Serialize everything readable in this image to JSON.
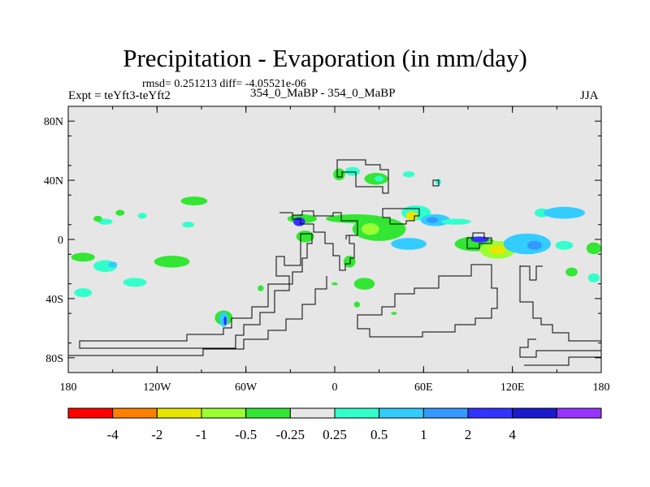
{
  "title": "Precipitation - Evaporation (in mm/day)",
  "stats": "rmsd= 0.251213 diff= -4.05521e-06",
  "expt": "Expt = teYft3-teYft2",
  "center_label": "354_0_MaBP - 354_0_MaBP",
  "season": "JJA",
  "chart_data": {
    "type": "heatmap",
    "projection": "cylindrical-equidistant",
    "xlim": [
      -180,
      180
    ],
    "ylim": [
      -90,
      90
    ],
    "x_ticks": [
      {
        "value": -180,
        "label": "180"
      },
      {
        "value": -120,
        "label": "120W"
      },
      {
        "value": -60,
        "label": "60W"
      },
      {
        "value": 0,
        "label": "0"
      },
      {
        "value": 60,
        "label": "60E"
      },
      {
        "value": 120,
        "label": "120E"
      },
      {
        "value": 180,
        "label": "180"
      }
    ],
    "y_ticks": [
      {
        "value": 80,
        "label": "80N"
      },
      {
        "value": 40,
        "label": "40N"
      },
      {
        "value": 0,
        "label": "0"
      },
      {
        "value": -40,
        "label": "40S"
      },
      {
        "value": -80,
        "label": "80S"
      }
    ],
    "background_color": "#e6e6e6",
    "colorbar": {
      "colors": [
        "#ff0000",
        "#ff8000",
        "#e6e600",
        "#99ff33",
        "#33e633",
        "#e6e6e6",
        "#33ffcc",
        "#33ccff",
        "#3399ff",
        "#3333ff",
        "#1a1acc",
        "#9933ff"
      ],
      "labels": [
        "-4",
        "-2",
        "-1",
        "-0.5",
        "-0.25",
        "0.25",
        "0.5",
        "1",
        "2",
        "4"
      ]
    },
    "anomalies": [
      {
        "lon": 3,
        "lat": 44,
        "rx": 4,
        "ry": 4,
        "color": "#33e633"
      },
      {
        "lon": 12,
        "lat": 46,
        "rx": 5,
        "ry": 3,
        "color": "#33ffcc"
      },
      {
        "lon": 28,
        "lat": 41,
        "rx": 8,
        "ry": 4,
        "color": "#33e633"
      },
      {
        "lon": 30,
        "lat": 41,
        "rx": 3,
        "ry": 2,
        "color": "#33ffcc"
      },
      {
        "lon": 50,
        "lat": 44,
        "rx": 4,
        "ry": 2,
        "color": "#33ffcc"
      },
      {
        "lon": 70,
        "lat": 39,
        "rx": 2,
        "ry": 2,
        "color": "#33ffcc"
      },
      {
        "lon": -95,
        "lat": 26,
        "rx": 9,
        "ry": 3,
        "color": "#33e633"
      },
      {
        "lon": -155,
        "lat": 12,
        "rx": 5,
        "ry": 2,
        "color": "#33ffcc"
      },
      {
        "lon": -99,
        "lat": 10,
        "rx": 4,
        "ry": 2,
        "color": "#33ffcc"
      },
      {
        "lon": -145,
        "lat": 18,
        "rx": 3,
        "ry": 2,
        "color": "#33e633"
      },
      {
        "lon": -130,
        "lat": 16,
        "rx": 3,
        "ry": 2,
        "color": "#33ffcc"
      },
      {
        "lon": -22,
        "lat": 14,
        "rx": 10,
        "ry": 3,
        "color": "#33e633"
      },
      {
        "lon": 14,
        "lat": 14,
        "rx": 20,
        "ry": 3,
        "color": "#33e633"
      },
      {
        "lon": 55,
        "lat": 18,
        "rx": 10,
        "ry": 5,
        "color": "#33ffcc"
      },
      {
        "lon": 52,
        "lat": 16,
        "rx": 4,
        "ry": 3,
        "color": "#e6e600"
      },
      {
        "lon": 68,
        "lat": 13,
        "rx": 10,
        "ry": 4,
        "color": "#33ccff"
      },
      {
        "lon": 66,
        "lat": 13,
        "rx": 4,
        "ry": 2,
        "color": "#3399ff"
      },
      {
        "lon": 82,
        "lat": 12,
        "rx": 10,
        "ry": 2,
        "color": "#33ffcc"
      },
      {
        "lon": 140,
        "lat": 18,
        "rx": 5,
        "ry": 3,
        "color": "#33ffcc"
      },
      {
        "lon": 155,
        "lat": 18,
        "rx": 14,
        "ry": 4,
        "color": "#33ccff"
      },
      {
        "lon": -160,
        "lat": 14,
        "rx": 3,
        "ry": 2,
        "color": "#33e633"
      },
      {
        "lon": -24,
        "lat": 12,
        "rx": 4,
        "ry": 3,
        "color": "#3333ff"
      },
      {
        "lon": 30,
        "lat": 7,
        "rx": 18,
        "ry": 8,
        "color": "#33e633"
      },
      {
        "lon": 24,
        "lat": 7,
        "rx": 6,
        "ry": 4,
        "color": "#99ff33"
      },
      {
        "lon": -20,
        "lat": 2,
        "rx": 6,
        "ry": 4,
        "color": "#33e633"
      },
      {
        "lon": 50,
        "lat": -3,
        "rx": 12,
        "ry": 4,
        "color": "#33ccff"
      },
      {
        "lon": 95,
        "lat": -3,
        "rx": 14,
        "ry": 5,
        "color": "#33e633"
      },
      {
        "lon": 110,
        "lat": -7,
        "rx": 12,
        "ry": 6,
        "color": "#99ff33"
      },
      {
        "lon": 110,
        "lat": -7,
        "rx": 6,
        "ry": 3,
        "color": "#e6e600"
      },
      {
        "lon": 130,
        "lat": -3,
        "rx": 16,
        "ry": 7,
        "color": "#33ccff"
      },
      {
        "lon": 135,
        "lat": -4,
        "rx": 5,
        "ry": 3,
        "color": "#3399ff"
      },
      {
        "lon": 155,
        "lat": -4,
        "rx": 6,
        "ry": 3,
        "color": "#33ffcc"
      },
      {
        "lon": 175,
        "lat": -6,
        "rx": 5,
        "ry": 4,
        "color": "#33e633"
      },
      {
        "lon": -170,
        "lat": -12,
        "rx": 8,
        "ry": 3,
        "color": "#33e633"
      },
      {
        "lon": -155,
        "lat": -18,
        "rx": 8,
        "ry": 4,
        "color": "#33ffcc"
      },
      {
        "lon": -150,
        "lat": -17,
        "rx": 3,
        "ry": 2,
        "color": "#33ccff"
      },
      {
        "lon": -110,
        "lat": -15,
        "rx": 12,
        "ry": 4,
        "color": "#33e633"
      },
      {
        "lon": -170,
        "lat": -36,
        "rx": 6,
        "ry": 3,
        "color": "#33ffcc"
      },
      {
        "lon": -135,
        "lat": -29,
        "rx": 8,
        "ry": 3,
        "color": "#33ffcc"
      },
      {
        "lon": 10,
        "lat": -15,
        "rx": 4,
        "ry": 4,
        "color": "#33e633"
      },
      {
        "lon": 20,
        "lat": -30,
        "rx": 7,
        "ry": 4,
        "color": "#33e633"
      },
      {
        "lon": 160,
        "lat": -22,
        "rx": 4,
        "ry": 3,
        "color": "#33e633"
      },
      {
        "lon": 175,
        "lat": -26,
        "rx": 4,
        "ry": 3,
        "color": "#33ffcc"
      },
      {
        "lon": -75,
        "lat": -53,
        "rx": 6,
        "ry": 5,
        "color": "#33e633"
      },
      {
        "lon": -75,
        "lat": -54,
        "rx": 3,
        "ry": 5,
        "color": "#33ccff"
      },
      {
        "lon": -74,
        "lat": -55,
        "rx": 1,
        "ry": 3,
        "color": "#3333ff"
      },
      {
        "lon": -50,
        "lat": -33,
        "rx": 2,
        "ry": 2,
        "color": "#33e633"
      },
      {
        "lon": 0,
        "lat": -30,
        "rx": 2,
        "ry": 1,
        "color": "#33e633"
      },
      {
        "lon": 15,
        "lat": -44,
        "rx": 2,
        "ry": 2,
        "color": "#33e633"
      },
      {
        "lon": 40,
        "lat": -50,
        "rx": 2,
        "ry": 1,
        "color": "#33e633"
      },
      {
        "lon": 98,
        "lat": 0,
        "rx": 6,
        "ry": 2,
        "color": "#3333ff"
      }
    ]
  }
}
